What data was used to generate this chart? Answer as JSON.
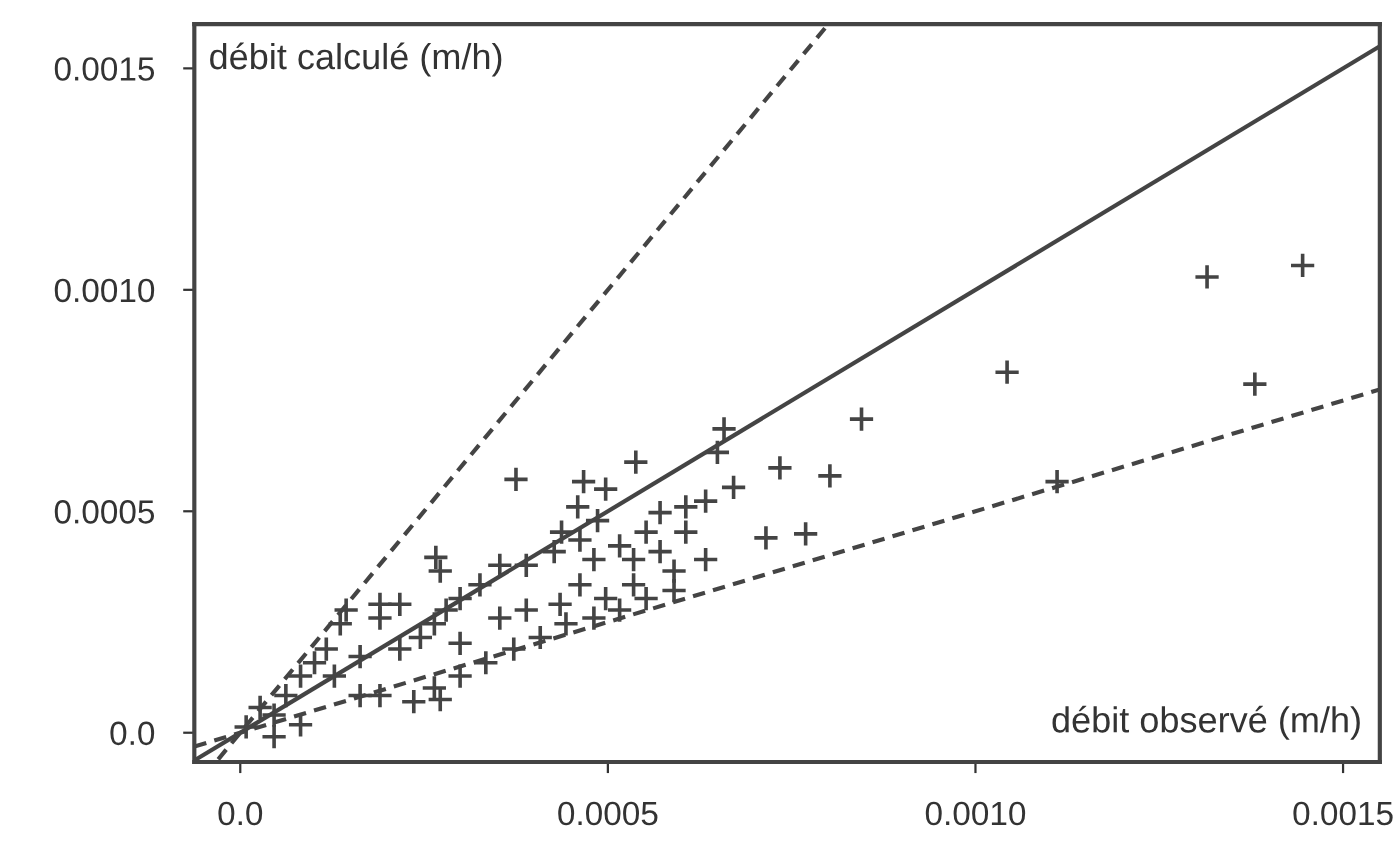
{
  "chart_data": {
    "type": "scatter",
    "xlabel": "débit observé (m/h)",
    "ylabel": "débit calculé (m/h)",
    "xlim": [
      -6.25e-05,
      0.00155
    ],
    "ylim": [
      -6.6e-05,
      0.0016
    ],
    "xticks": [
      {
        "value": 0,
        "label": "0.0"
      },
      {
        "value": 0.0005,
        "label": "0.0005"
      },
      {
        "value": 0.001,
        "label": "0.0010"
      },
      {
        "value": 0.0015,
        "label": "0.0015"
      }
    ],
    "yticks": [
      {
        "value": 0,
        "label": "0.0"
      },
      {
        "value": 0.0005,
        "label": "0.0005"
      },
      {
        "value": 0.001,
        "label": "0.0010"
      },
      {
        "value": 0.0015,
        "label": "0.0015"
      }
    ],
    "grid": false,
    "legend": false,
    "series": [
      {
        "marker": "cross",
        "color": "#444444",
        "x": [
          0.001315,
          0.001445,
          0.001043,
          0.00138,
          0.000845,
          0.000802,
          0.001111,
          0.000769,
          0.000734,
          0.000715,
          0.000658,
          0.000649,
          0.000538,
          0.000375,
          0.000467,
          0.000497,
          0.000459,
          0.000486,
          0.000266,
          0.000272,
          0.000353,
          0.000437,
          0.000671,
          0.000633,
          0.000606,
          0.000571,
          0.000552,
          0.000606,
          0.000633,
          0.00059,
          0.00059,
          0.000552,
          0.000516,
          0.000481,
          0.000443,
          0.000408,
          0.000372,
          0.000334,
          0.000299,
          0.000264,
          0.000236,
          0.00019,
          0.000163,
          0.000272,
          0.000462,
          0.000427,
          0.000389,
          0.000326,
          0.000299,
          0.00028,
          0.000245,
          0.000217,
          0.00019,
          0.00019,
          0.000144,
          0.000136,
          0.000117,
          0.000101,
          8.2e-05,
          6.2e-05,
          4.6e-05,
          4.6e-05,
          2.7e-05,
          8e-06,
          8.2e-05,
          0.000128,
          0.000163,
          0.000217,
          0.000264,
          0.000299,
          0.000353,
          0.000389,
          0.000435,
          0.000497,
          0.000535,
          0.000535,
          0.000571,
          0.000516,
          0.000481,
          0.000462
        ],
        "values": [
          0.001029,
          0.001055,
          0.000814,
          0.000787,
          0.000708,
          0.00058,
          0.000567,
          0.000449,
          0.000598,
          0.00044,
          0.000686,
          0.000633,
          0.000611,
          0.000572,
          0.000567,
          0.00055,
          0.00051,
          0.000479,
          0.000396,
          0.000365,
          0.000378,
          0.000453,
          0.000554,
          0.000523,
          0.00051,
          0.000497,
          0.000453,
          0.000453,
          0.000391,
          0.000365,
          0.000321,
          0.000303,
          0.000277,
          0.000259,
          0.000246,
          0.000215,
          0.000189,
          0.000158,
          0.000128,
          0.000101,
          7e-05,
          8.4e-05,
          8.4e-05,
          7.5e-05,
          0.000435,
          0.000409,
          0.000378,
          0.000334,
          0.000303,
          0.000277,
          0.000215,
          0.000189,
          0.000259,
          0.00029,
          0.000277,
          0.000246,
          0.000189,
          0.000158,
          0.000128,
          8.4e-05,
          4e-05,
          -9e-06,
          5.7e-05,
          1.3e-05,
          1.8e-05,
          0.000128,
          0.000172,
          0.00029,
          0.000246,
          0.000202,
          0.000259,
          0.000277,
          0.00029,
          0.000303,
          0.000334,
          0.000391,
          0.000409,
          0.000422,
          0.000391,
          0.000334
        ]
      },
      {
        "type": "line",
        "line_style": "solid",
        "color": "#444444",
        "x": [
          -6.25e-05,
          0.00155
        ],
        "values": [
          -6.25e-05,
          0.00155
        ]
      },
      {
        "type": "line",
        "line_style": "dashed",
        "color": "#444444",
        "x": [
          -3e-05,
          0.0008
        ],
        "values": [
          -6e-05,
          0.0016
        ]
      },
      {
        "type": "line",
        "line_style": "dashed",
        "color": "#444444",
        "x": [
          -6.25e-05,
          0.00155
        ],
        "values": [
          -3.125e-05,
          0.000775
        ]
      }
    ]
  }
}
